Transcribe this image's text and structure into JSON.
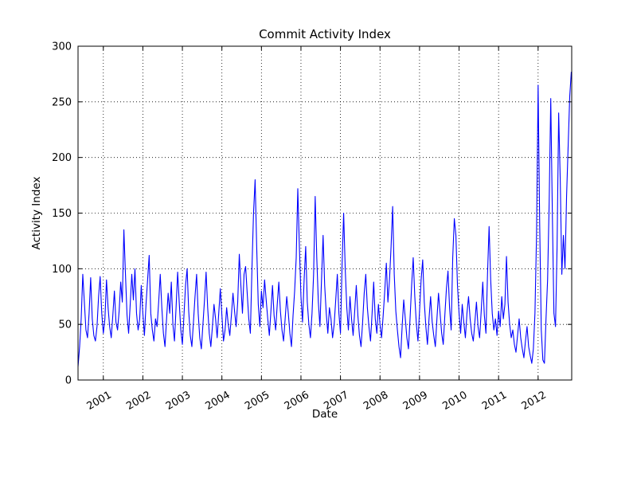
{
  "window": {
    "background": "#ffffff"
  },
  "chart_data": {
    "type": "line",
    "title": "Commit Activity Index",
    "xlabel": "Date",
    "ylabel": "Activity Index",
    "grid": true,
    "grid_style": "dotted",
    "legend": "none",
    "line_color": "#0000ff",
    "axis_color": "#000000",
    "background_color": "#ffffff",
    "ylim": [
      0,
      300
    ],
    "yticks": [
      0,
      50,
      100,
      150,
      200,
      250,
      300
    ],
    "xlim": [
      2000.36,
      2012.85
    ],
    "xticks": [
      2001,
      2002,
      2003,
      2004,
      2005,
      2006,
      2007,
      2008,
      2009,
      2010,
      2011,
      2012
    ],
    "x_tick_rotation": 30,
    "series": [
      {
        "name": "Commit Activity Index",
        "x_start": 2000.36,
        "x_step": 0.04,
        "values": [
          12,
          30,
          55,
          95,
          70,
          45,
          38,
          60,
          92,
          55,
          40,
          35,
          48,
          75,
          93,
          60,
          42,
          55,
          90,
          65,
          48,
          38,
          58,
          80,
          52,
          45,
          62,
          88,
          70,
          135,
          95,
          58,
          42,
          68,
          95,
          72,
          100,
          60,
          45,
          55,
          85,
          60,
          40,
          68,
          90,
          112,
          60,
          45,
          35,
          55,
          48,
          70,
          95,
          65,
          42,
          30,
          55,
          78,
          60,
          88,
          50,
          35,
          65,
          97,
          70,
          45,
          32,
          58,
          85,
          100,
          62,
          40,
          30,
          52,
          75,
          95,
          60,
          38,
          28,
          50,
          72,
          97,
          65,
          42,
          30,
          48,
          68,
          55,
          38,
          60,
          82,
          58,
          35,
          45,
          65,
          50,
          40,
          58,
          78,
          62,
          48,
          70,
          113,
          85,
          60,
          95,
          102,
          78,
          55,
          42,
          100,
          150,
          180,
          120,
          68,
          48,
          80,
          65,
          90,
          72,
          55,
          40,
          62,
          85,
          58,
          45,
          68,
          88,
          62,
          45,
          35,
          55,
          75,
          60,
          42,
          30,
          58,
          80,
          110,
          172,
          120,
          75,
          52,
          90,
          120,
          70,
          50,
          38,
          60,
          95,
          165,
          110,
          70,
          48,
          90,
          130,
          85,
          60,
          42,
          65,
          55,
          38,
          50,
          72,
          95,
          60,
          42,
          103,
          150,
          100,
          65,
          45,
          75,
          55,
          40,
          62,
          85,
          58,
          40,
          30,
          52,
          78,
          95,
          65,
          48,
          35,
          60,
          88,
          55,
          42,
          68,
          50,
          38,
          58,
          80,
          105,
          70,
          90,
          120,
          156,
          95,
          62,
          45,
          30,
          20,
          48,
          72,
          55,
          38,
          28,
          55,
          85,
          110,
          75,
          50,
          35,
          62,
          90,
          108,
          70,
          48,
          32,
          55,
          75,
          52,
          40,
          30,
          55,
          78,
          60,
          42,
          32,
          58,
          82,
          98,
          65,
          45,
          110,
          145,
          130,
          85,
          60,
          42,
          68,
          52,
          38,
          60,
          75,
          55,
          42,
          35,
          52,
          70,
          48,
          38,
          62,
          88,
          58,
          42,
          95,
          138,
          90,
          60,
          45,
          55,
          40,
          62,
          48,
          75,
          55,
          68,
          111,
          70,
          50,
          38,
          45,
          32,
          25,
          40,
          55,
          38,
          28,
          20,
          35,
          48,
          30,
          22,
          15,
          28,
          60,
          130,
          265,
          140,
          45,
          18,
          15,
          55,
          90,
          160,
          253,
          150,
          60,
          48,
          120,
          240,
          180,
          95,
          130,
          100,
          165,
          210,
          255,
          277
        ]
      }
    ]
  }
}
